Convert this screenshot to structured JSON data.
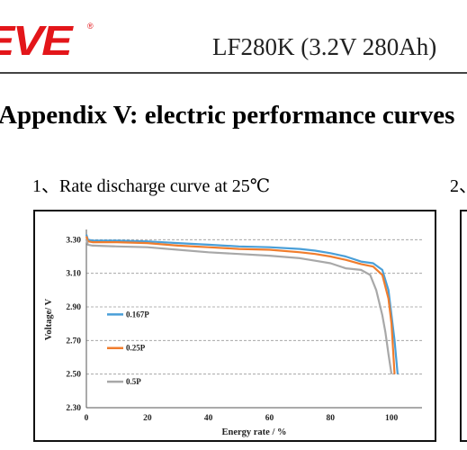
{
  "header": {
    "logo": "EVE",
    "logo_mark": "®",
    "doc_title": "LF280K (3.2V 280Ah)"
  },
  "appendix_title": "Appendix V: electric performance curves",
  "sections": [
    {
      "label": "1、Rate discharge curve at 25℃"
    },
    {
      "label": "2、"
    }
  ],
  "colors": {
    "brand": "#e3161a",
    "series_0167P": "#4a9fd8",
    "series_025P": "#f07d2d",
    "series_05P": "#a8a8a8"
  },
  "chart_data": {
    "type": "line",
    "title": "",
    "xlabel": "Energy rate / %",
    "ylabel": "Voltage/ V",
    "xlim": [
      0,
      110
    ],
    "ylim": [
      2.3,
      3.35
    ],
    "x_ticks": [
      "0",
      "20",
      "40",
      "60",
      "80",
      "100"
    ],
    "y_ticks": [
      "2.30",
      "2.50",
      "2.70",
      "2.90",
      "3.10",
      "3.30"
    ],
    "grid": "horizontal-dashed",
    "legend_position": "left",
    "series": [
      {
        "name": "0.167P",
        "color": "#4a9fd8",
        "x": [
          0,
          0.5,
          2,
          10,
          20,
          30,
          40,
          50,
          60,
          70,
          75,
          80,
          85,
          90,
          94,
          97,
          99,
          100,
          101,
          101.5,
          102
        ],
        "y": [
          3.33,
          3.3,
          3.295,
          3.295,
          3.29,
          3.28,
          3.27,
          3.26,
          3.255,
          3.245,
          3.235,
          3.22,
          3.2,
          3.17,
          3.16,
          3.12,
          3.0,
          2.85,
          2.7,
          2.6,
          2.5
        ]
      },
      {
        "name": "0.25P",
        "color": "#f07d2d",
        "x": [
          0,
          0.5,
          2,
          10,
          20,
          30,
          40,
          50,
          60,
          70,
          75,
          80,
          85,
          90,
          94,
          97,
          99,
          100,
          100.5,
          101
        ],
        "y": [
          3.32,
          3.29,
          3.285,
          3.285,
          3.28,
          3.265,
          3.255,
          3.245,
          3.24,
          3.225,
          3.215,
          3.2,
          3.18,
          3.155,
          3.14,
          3.09,
          2.95,
          2.8,
          2.65,
          2.5
        ]
      },
      {
        "name": "0.5P",
        "color": "#a8a8a8",
        "x": [
          0,
          0.5,
          2,
          10,
          20,
          30,
          40,
          50,
          60,
          70,
          75,
          80,
          85,
          90,
          93,
          95,
          97,
          98,
          99,
          100
        ],
        "y": [
          3.3,
          3.27,
          3.265,
          3.26,
          3.255,
          3.24,
          3.225,
          3.215,
          3.205,
          3.19,
          3.175,
          3.16,
          3.13,
          3.12,
          3.09,
          3.0,
          2.85,
          2.75,
          2.62,
          2.5
        ]
      }
    ]
  }
}
